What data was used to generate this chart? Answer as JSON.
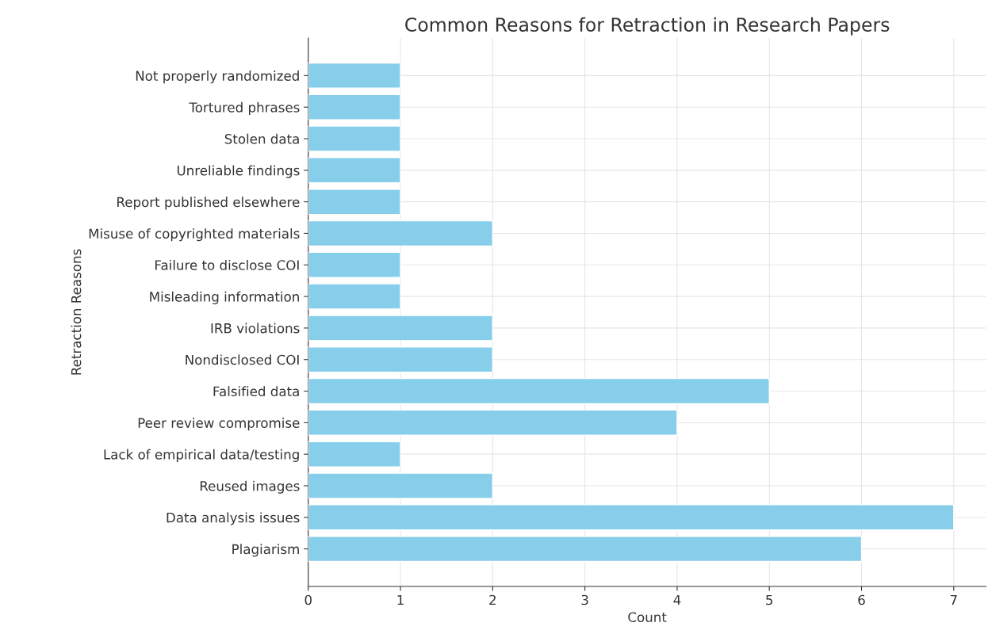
{
  "chart_data": {
    "type": "bar",
    "orientation": "horizontal",
    "title": "Common Reasons for Retraction in Research Papers",
    "xlabel": "Count",
    "ylabel": "Retraction Reasons",
    "categories": [
      "Not properly randomized",
      "Tortured phrases",
      "Stolen data",
      "Unreliable findings",
      "Report published elsewhere",
      "Misuse of copyrighted materials",
      "Failure to disclose COI",
      "Misleading information",
      "IRB violations",
      "Nondisclosed COI",
      "Falsified data",
      "Peer review compromise",
      "Lack of empirical data/testing",
      "Reused images",
      "Data analysis issues",
      "Plagiarism"
    ],
    "values": [
      1,
      1,
      1,
      1,
      1,
      2,
      1,
      1,
      2,
      2,
      5,
      4,
      1,
      2,
      7,
      6
    ],
    "color": "#87ceeb",
    "xlim": [
      0,
      7.35
    ],
    "xticks": [
      0,
      1,
      2,
      3,
      4,
      5,
      6,
      7
    ],
    "grid": true
  }
}
